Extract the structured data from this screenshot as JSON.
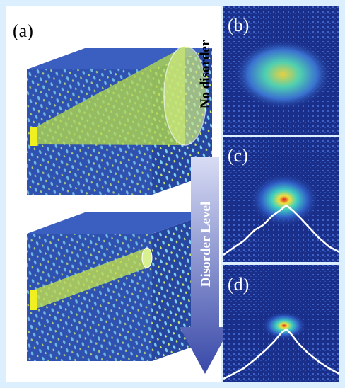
{
  "figure": {
    "panels": {
      "a": {
        "label": "(a)"
      },
      "b": {
        "label": "(b)",
        "caption": "No disorder"
      },
      "c": {
        "label": "(c)"
      },
      "d": {
        "label": "(d)"
      }
    },
    "arrow_label": "Disorder Level"
  }
}
